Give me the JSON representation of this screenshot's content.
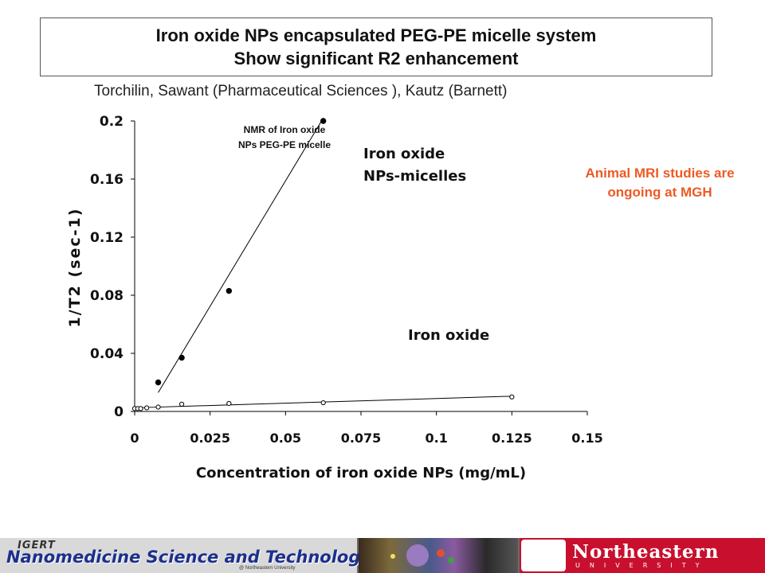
{
  "header": {
    "title_line1": "Iron oxide NPs encapsulated PEG-PE micelle system",
    "title_line2": "Show significant R2 enhancement",
    "authors": "Torchilin, Sawant (Pharmaceutical Sciences ), Kautz (Barnett)"
  },
  "note": "Animal MRI studies are ongoing at MGH",
  "chart_data": {
    "type": "scatter",
    "title": "NMR of Iron oxide NPs PEG-PE micelle",
    "title_line1": "NMR of Iron oxide",
    "title_line2": "NPs PEG-PE micelle",
    "xlabel": "Concentration of iron oxide NPs (mg/mL)",
    "ylabel": "1/T2 (sec-1)",
    "xlim": [
      0,
      0.15
    ],
    "ylim": [
      0,
      0.2
    ],
    "x_ticks": [
      0,
      0.025,
      0.05,
      0.075,
      0.1,
      0.125,
      0.15
    ],
    "x_tick_labels": [
      "0",
      "0.025",
      "0.05",
      "0.075",
      "0.1",
      "0.125",
      "0.15"
    ],
    "y_ticks": [
      0,
      0.04,
      0.08,
      0.12,
      0.16,
      0.2
    ],
    "y_tick_labels": [
      "0",
      "0.04",
      "0.08",
      "0.12",
      "0.16",
      "0.2"
    ],
    "grid": false,
    "series": [
      {
        "name": "Iron oxide NPs-micelles",
        "label_line1": "Iron oxide",
        "label_line2": "NPs-micelles",
        "marker": "filled",
        "x": [
          0.0078,
          0.0156,
          0.03125,
          0.0625
        ],
        "y": [
          0.02,
          0.037,
          0.083,
          0.2
        ],
        "fit": [
          [
            0.0078,
            0.013
          ],
          [
            0.0625,
            0.202
          ]
        ]
      },
      {
        "name": "Iron oxide",
        "label_line1": "Iron oxide",
        "marker": "open",
        "x": [
          0,
          0.001,
          0.002,
          0.004,
          0.0078,
          0.0156,
          0.03125,
          0.0625,
          0.125
        ],
        "y": [
          0.002,
          0.002,
          0.002,
          0.0025,
          0.003,
          0.005,
          0.0055,
          0.006,
          0.01
        ],
        "fit": [
          [
            0,
            0.0025
          ],
          [
            0.125,
            0.0105
          ]
        ]
      }
    ]
  },
  "footer": {
    "left_logo_small": "IGERT",
    "left_logo_main": "Nanomedicine Science and Technology",
    "left_logo_sub": "@ Northeastern University",
    "right_logo_name": "Northeastern",
    "right_logo_sub": "UNIVERSITY"
  },
  "colors": {
    "note": "#ee5a24",
    "logo_blue": "#1c2f8c",
    "northeastern_red": "#c8102e"
  }
}
